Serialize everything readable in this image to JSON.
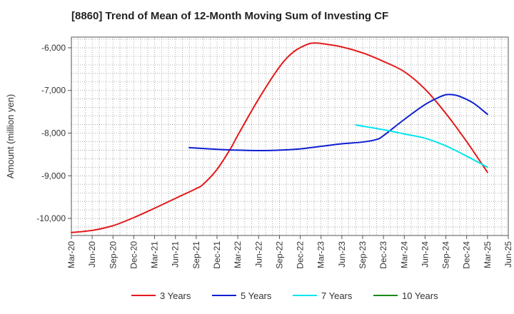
{
  "chart_data": {
    "type": "line",
    "title": "[8860]  Trend of Mean of 12-Month Moving Sum of Investing CF",
    "ylabel": "Amount (million yen)",
    "xlabel": "",
    "ylim": [
      -10400,
      -5750
    ],
    "yticks": [
      -6000,
      -7000,
      -8000,
      -9000,
      -10000
    ],
    "ytick_labels": [
      "-6,000",
      "-7,000",
      "-8,000",
      "-9,000",
      "-10,000"
    ],
    "x_range": [
      "2020-03",
      "2025-06"
    ],
    "xtick_labels": [
      "Mar-20",
      "Jun-20",
      "Sep-20",
      "Dec-20",
      "Mar-21",
      "Jun-21",
      "Sep-21",
      "Dec-21",
      "Mar-22",
      "Jun-22",
      "Sep-22",
      "Dec-22",
      "Mar-23",
      "Jun-23",
      "Sep-23",
      "Dec-23",
      "Mar-24",
      "Jun-24",
      "Sep-24",
      "Dec-24",
      "Mar-25",
      "Jun-25"
    ],
    "grid": true,
    "legend_position": "bottom",
    "series": [
      {
        "name": "3 Years",
        "color": "#e31a1c",
        "points": [
          [
            "2020-03",
            -10330
          ],
          [
            "2020-06",
            -10280
          ],
          [
            "2020-09",
            -10170
          ],
          [
            "2020-12",
            -9980
          ],
          [
            "2021-03",
            -9760
          ],
          [
            "2021-06",
            -9530
          ],
          [
            "2021-09",
            -9300
          ],
          [
            "2021-10",
            -9200
          ],
          [
            "2021-12",
            -8850
          ],
          [
            "2022-02",
            -8350
          ],
          [
            "2022-03",
            -8050
          ],
          [
            "2022-06",
            -7200
          ],
          [
            "2022-09",
            -6450
          ],
          [
            "2022-11",
            -6100
          ],
          [
            "2023-01",
            -5920
          ],
          [
            "2023-02",
            -5890
          ],
          [
            "2023-03",
            -5900
          ],
          [
            "2023-06",
            -5980
          ],
          [
            "2023-09",
            -6120
          ],
          [
            "2023-12",
            -6320
          ],
          [
            "2024-03",
            -6560
          ],
          [
            "2024-06",
            -6970
          ],
          [
            "2024-09",
            -7540
          ],
          [
            "2024-12",
            -8200
          ],
          [
            "2025-03",
            -8920
          ]
        ]
      },
      {
        "name": "5 Years",
        "color": "#0d1fd1",
        "points": [
          [
            "2021-08",
            -8340
          ],
          [
            "2021-12",
            -8380
          ],
          [
            "2022-03",
            -8400
          ],
          [
            "2022-06",
            -8410
          ],
          [
            "2022-09",
            -8400
          ],
          [
            "2022-12",
            -8370
          ],
          [
            "2023-03",
            -8310
          ],
          [
            "2023-06",
            -8250
          ],
          [
            "2023-09",
            -8210
          ],
          [
            "2023-11",
            -8150
          ],
          [
            "2023-12",
            -8060
          ],
          [
            "2024-03",
            -7680
          ],
          [
            "2024-06",
            -7330
          ],
          [
            "2024-08",
            -7160
          ],
          [
            "2024-09",
            -7100
          ],
          [
            "2024-10",
            -7100
          ],
          [
            "2024-11",
            -7140
          ],
          [
            "2025-01",
            -7300
          ],
          [
            "2025-03",
            -7560
          ]
        ]
      },
      {
        "name": "7 Years",
        "color": "#00e5f0",
        "points": [
          [
            "2023-08",
            -7810
          ],
          [
            "2023-12",
            -7920
          ],
          [
            "2024-03",
            -8020
          ],
          [
            "2024-06",
            -8120
          ],
          [
            "2024-09",
            -8300
          ],
          [
            "2024-12",
            -8540
          ],
          [
            "2025-03",
            -8800
          ]
        ]
      },
      {
        "name": "10 Years",
        "color": "#1a8a1a",
        "points": []
      }
    ]
  }
}
